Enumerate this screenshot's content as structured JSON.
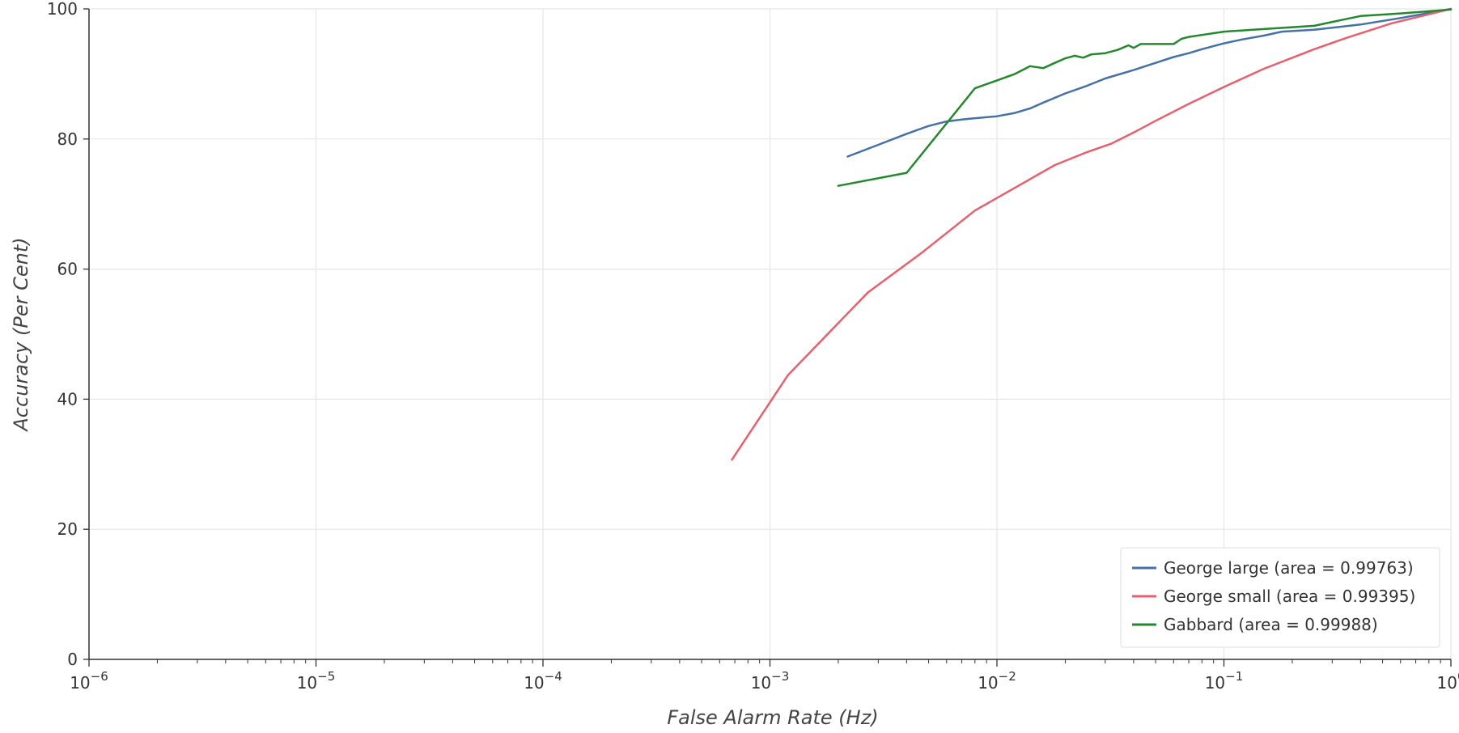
{
  "chart_data": {
    "type": "line",
    "xscale": "log",
    "xlim": [
      1e-06,
      1
    ],
    "ylim": [
      0,
      100
    ],
    "xlabel": "False Alarm Rate (Hz)",
    "ylabel": "Accuracy (Per Cent)",
    "x_ticks": [
      {
        "value": 1e-06,
        "base": "10",
        "exp": "−6"
      },
      {
        "value": 1e-05,
        "base": "10",
        "exp": "−5"
      },
      {
        "value": 0.0001,
        "base": "10",
        "exp": "−4"
      },
      {
        "value": 0.001,
        "base": "10",
        "exp": "−3"
      },
      {
        "value": 0.01,
        "base": "10",
        "exp": "−2"
      },
      {
        "value": 0.1,
        "base": "10",
        "exp": "−1"
      },
      {
        "value": 1,
        "base": "10",
        "exp": "0"
      }
    ],
    "y_ticks": [
      {
        "value": 0,
        "label": "0"
      },
      {
        "value": 20,
        "label": "20"
      },
      {
        "value": 40,
        "label": "40"
      },
      {
        "value": 60,
        "label": "60"
      },
      {
        "value": 80,
        "label": "80"
      },
      {
        "value": 100,
        "label": "100"
      }
    ],
    "grid": true,
    "legend_position": "bottom-right",
    "series": [
      {
        "name": "George large (area = 0.99763)",
        "color": "#4471a8",
        "points": [
          [
            0.0022,
            77.3
          ],
          [
            0.003,
            79.1
          ],
          [
            0.004,
            80.8
          ],
          [
            0.005,
            82.0
          ],
          [
            0.006,
            82.7
          ],
          [
            0.007,
            83.0
          ],
          [
            0.008,
            83.2
          ],
          [
            0.01,
            83.5
          ],
          [
            0.012,
            84.0
          ],
          [
            0.014,
            84.7
          ],
          [
            0.016,
            85.6
          ],
          [
            0.02,
            87.0
          ],
          [
            0.025,
            88.2
          ],
          [
            0.03,
            89.3
          ],
          [
            0.04,
            90.6
          ],
          [
            0.05,
            91.7
          ],
          [
            0.06,
            92.6
          ],
          [
            0.07,
            93.2
          ],
          [
            0.08,
            93.8
          ],
          [
            0.1,
            94.7
          ],
          [
            0.12,
            95.3
          ],
          [
            0.15,
            95.9
          ],
          [
            0.18,
            96.5
          ],
          [
            0.25,
            96.8
          ],
          [
            0.4,
            97.6
          ],
          [
            0.6,
            98.6
          ],
          [
            1.0,
            100.0
          ]
        ]
      },
      {
        "name": "George small (area = 0.99395)",
        "color": "#e8606e",
        "points": [
          [
            0.00068,
            30.7
          ],
          [
            0.0012,
            43.7
          ],
          [
            0.0027,
            56.4
          ],
          [
            0.0047,
            62.6
          ],
          [
            0.008,
            69.0
          ],
          [
            0.012,
            72.5
          ],
          [
            0.018,
            76.0
          ],
          [
            0.025,
            78.0
          ],
          [
            0.032,
            79.3
          ],
          [
            0.04,
            81.0
          ],
          [
            0.05,
            82.8
          ],
          [
            0.07,
            85.4
          ],
          [
            0.1,
            88.0
          ],
          [
            0.15,
            90.8
          ],
          [
            0.25,
            93.8
          ],
          [
            0.35,
            95.6
          ],
          [
            0.55,
            97.8
          ],
          [
            1.0,
            100.0
          ]
        ]
      },
      {
        "name": "Gabbard (area = 0.99988)",
        "color": "#24882f",
        "points": [
          [
            0.002,
            72.8
          ],
          [
            0.004,
            74.8
          ],
          [
            0.008,
            87.8
          ],
          [
            0.01,
            89.0
          ],
          [
            0.012,
            90.0
          ],
          [
            0.014,
            91.2
          ],
          [
            0.016,
            90.9
          ],
          [
            0.018,
            91.7
          ],
          [
            0.02,
            92.4
          ],
          [
            0.022,
            92.8
          ],
          [
            0.024,
            92.5
          ],
          [
            0.026,
            93.0
          ],
          [
            0.03,
            93.2
          ],
          [
            0.034,
            93.7
          ],
          [
            0.038,
            94.4
          ],
          [
            0.04,
            94.0
          ],
          [
            0.043,
            94.6
          ],
          [
            0.05,
            94.6
          ],
          [
            0.06,
            94.6
          ],
          [
            0.065,
            95.4
          ],
          [
            0.07,
            95.7
          ],
          [
            0.08,
            96.0
          ],
          [
            0.1,
            96.5
          ],
          [
            0.15,
            96.9
          ],
          [
            0.25,
            97.4
          ],
          [
            0.3,
            98.0
          ],
          [
            0.4,
            98.9
          ],
          [
            0.6,
            99.3
          ],
          [
            1.0,
            99.9
          ]
        ]
      }
    ]
  }
}
